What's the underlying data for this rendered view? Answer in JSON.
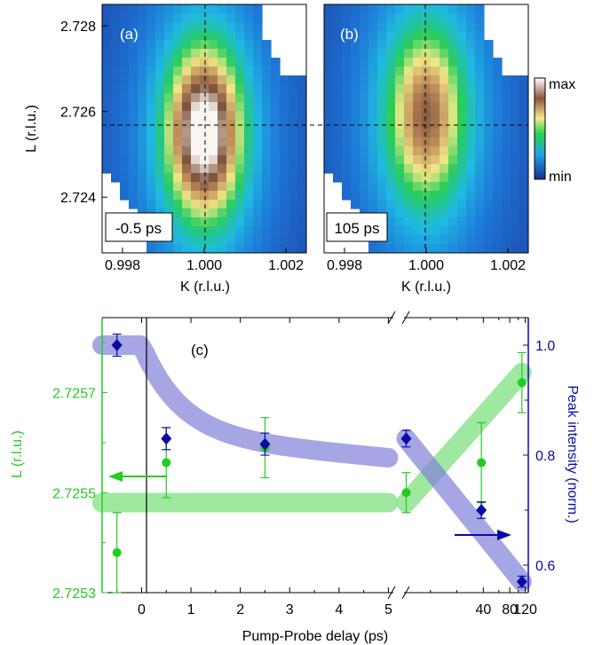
{
  "chart_data": [
    {
      "type": "heatmap",
      "panel_label": "(a)",
      "annotation": "-0.5 ps",
      "xlabel": "K (r.l.u.)",
      "ylabel": "L (r.l.u.)",
      "xlim": [
        0.9975,
        1.0025
      ],
      "ylim": [
        2.7227,
        2.7285
      ],
      "xticks": [
        "0.998",
        "1.000",
        "1.002"
      ],
      "yticks": [
        "2.724",
        "2.726",
        "2.728"
      ],
      "peak_center": {
        "K": 1.0,
        "L": 2.7255
      },
      "relative_peak_intensity": 1.0
    },
    {
      "type": "heatmap",
      "panel_label": "(b)",
      "annotation": "105 ps",
      "xlabel": "K (r.l.u.)",
      "xlim": [
        0.9975,
        1.0025
      ],
      "ylim": [
        2.7227,
        2.7285
      ],
      "xticks": [
        "0.998",
        "1.000",
        "1.002"
      ],
      "peak_center": {
        "K": 1.0,
        "L": 2.7259
      },
      "relative_peak_intensity": 0.57
    },
    {
      "type": "scatter",
      "panel_label": "(c)",
      "xlabel": "Pump-Probe delay (ps)",
      "ylabel_left": "L (r.l.u.)",
      "ylabel_right": "Peak intensity (norm.)",
      "x_segment_linear": {
        "range": [
          -0.8,
          5.1
        ],
        "ticks": [
          "0",
          "1",
          "2",
          "3",
          "4",
          "5"
        ]
      },
      "x_segment_log": {
        "range": [
          5,
          130
        ],
        "ticks": [
          "5",
          "10",
          "20",
          "40",
          "60",
          "80",
          "100",
          "120"
        ]
      },
      "ylim_left": [
        2.7253,
        2.72585
      ],
      "yticks_left": [
        "2.7253",
        "2.7255",
        "2.7257"
      ],
      "ylim_right": [
        0.55,
        1.05
      ],
      "yticks_right": [
        "0.6",
        "0.8",
        "1.0"
      ],
      "series": [
        {
          "axis": "left",
          "color": "#22cc22",
          "points": [
            {
              "x": -0.5,
              "y": 2.72538,
              "err": 8e-05
            },
            {
              "x": 0.5,
              "y": 2.72556,
              "err": 7e-05
            },
            {
              "x": 2.5,
              "y": 2.72559,
              "err": 6e-05
            },
            {
              "x": 5.3,
              "y": 2.7255,
              "err": 4e-05
            },
            {
              "x": 38,
              "y": 2.72556,
              "err": 8e-05
            },
            {
              "x": 110,
              "y": 2.72572,
              "err": 6e-05
            }
          ]
        },
        {
          "axis": "right",
          "color": "#0a0aa6",
          "points": [
            {
              "x": -0.5,
              "y": 1.0,
              "err": 0.02
            },
            {
              "x": 0.5,
              "y": 0.83,
              "err": 0.02
            },
            {
              "x": 2.5,
              "y": 0.82,
              "err": 0.02
            },
            {
              "x": 5.3,
              "y": 0.83,
              "err": 0.015
            },
            {
              "x": 38,
              "y": 0.7,
              "err": 0.015
            },
            {
              "x": 110,
              "y": 0.57,
              "err": 0.01
            }
          ]
        }
      ],
      "colorbar": {
        "max_label": "max",
        "min_label": "min"
      }
    }
  ]
}
